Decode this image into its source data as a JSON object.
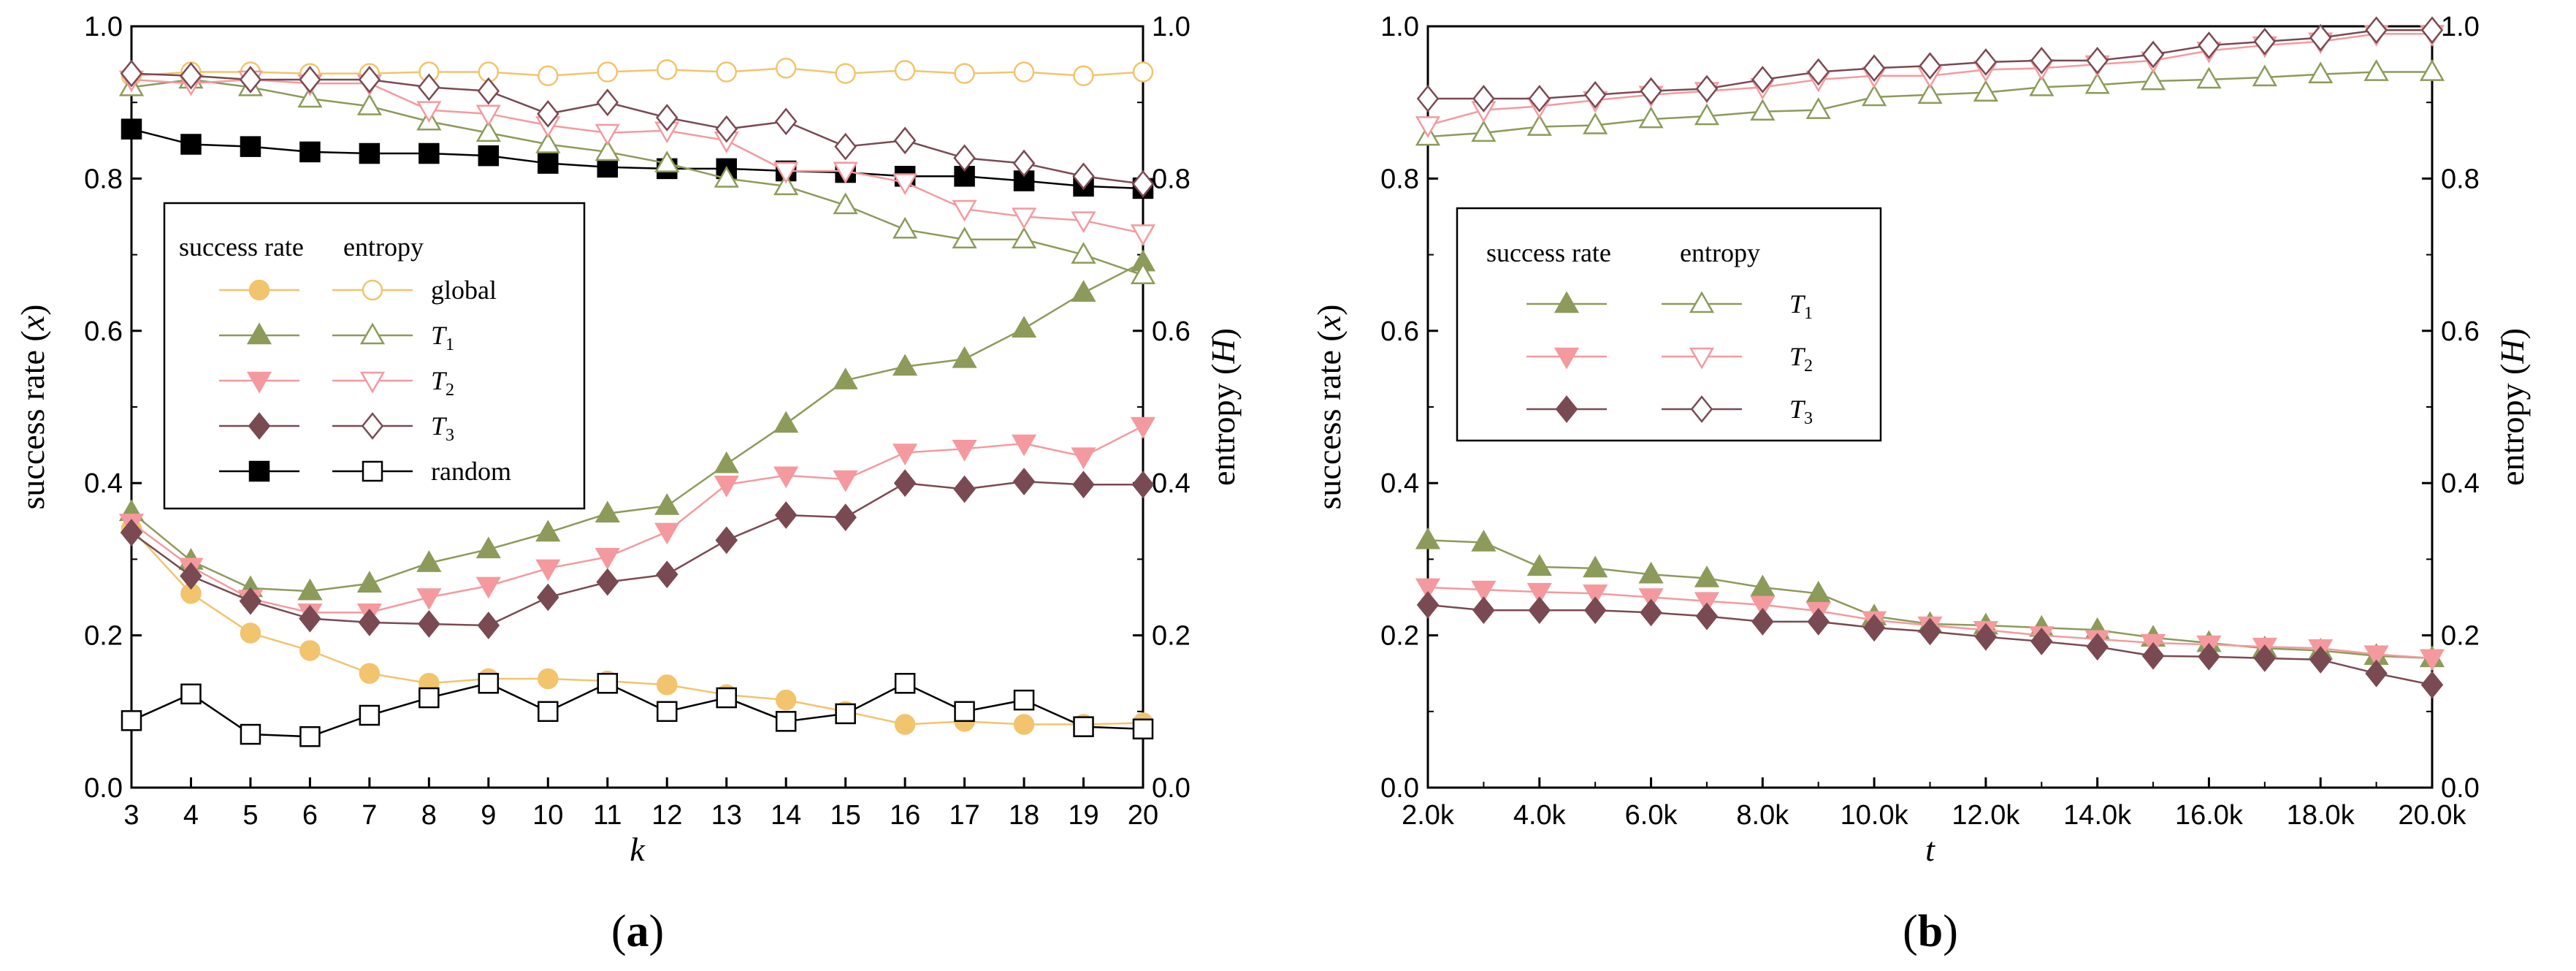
{
  "colors": {
    "global": "#F2C46D",
    "T1": "#8C9B5A",
    "T2": "#F49A9E",
    "T3": "#7A4A52",
    "random": "#000000"
  },
  "chart_data": [
    {
      "type": "line",
      "panel_label": "(a)",
      "xlabel": "k",
      "ylabel_left": "success rate (x)",
      "ylabel_right": "entropy (H)",
      "x": [
        3,
        4,
        5,
        6,
        7,
        8,
        9,
        10,
        11,
        12,
        13,
        14,
        15,
        16,
        17,
        18,
        19,
        20
      ],
      "x_ticks": [
        "3",
        "4",
        "5",
        "6",
        "7",
        "8",
        "9",
        "10",
        "11",
        "12",
        "13",
        "14",
        "15",
        "16",
        "17",
        "18",
        "19",
        "20"
      ],
      "xlim": [
        3,
        20
      ],
      "ylim": [
        0,
        1
      ],
      "y_ticks": [
        "0.0",
        "0.2",
        "0.4",
        "0.6",
        "0.8",
        "1.0"
      ],
      "legend": {
        "position": "left-middle",
        "header_success": "success rate",
        "header_entropy": "entropy",
        "rows": [
          {
            "key": "global",
            "label": "global"
          },
          {
            "key": "T1",
            "label": "T",
            "sub": "1"
          },
          {
            "key": "T2",
            "label": "T",
            "sub": "2"
          },
          {
            "key": "T3",
            "label": "T",
            "sub": "3"
          },
          {
            "key": "random",
            "label": "random"
          }
        ]
      },
      "series": [
        {
          "key": "global",
          "kind": "success",
          "marker": "circle",
          "filled": true,
          "values": [
            0.34,
            0.255,
            0.203,
            0.18,
            0.15,
            0.137,
            0.143,
            0.143,
            0.14,
            0.135,
            0.122,
            0.115,
            0.1,
            0.083,
            0.087,
            0.083,
            0.083,
            0.085
          ]
        },
        {
          "key": "T1",
          "kind": "success",
          "marker": "triangle-up",
          "filled": true,
          "values": [
            0.362,
            0.298,
            0.262,
            0.258,
            0.268,
            0.295,
            0.313,
            0.335,
            0.36,
            0.37,
            0.425,
            0.478,
            0.535,
            0.553,
            0.563,
            0.603,
            0.65,
            0.69
          ]
        },
        {
          "key": "T2",
          "kind": "success",
          "marker": "triangle-down",
          "filled": true,
          "values": [
            0.348,
            0.29,
            0.248,
            0.23,
            0.23,
            0.25,
            0.265,
            0.288,
            0.303,
            0.336,
            0.398,
            0.41,
            0.405,
            0.44,
            0.445,
            0.452,
            0.435,
            0.475
          ]
        },
        {
          "key": "T3",
          "kind": "success",
          "marker": "diamond",
          "filled": true,
          "values": [
            0.335,
            0.278,
            0.245,
            0.222,
            0.217,
            0.215,
            0.213,
            0.25,
            0.27,
            0.28,
            0.325,
            0.358,
            0.355,
            0.4,
            0.392,
            0.402,
            0.398,
            0.398
          ]
        },
        {
          "key": "random",
          "kind": "success",
          "marker": "square",
          "filled": true,
          "values": [
            0.865,
            0.845,
            0.842,
            0.835,
            0.833,
            0.833,
            0.83,
            0.82,
            0.815,
            0.813,
            0.813,
            0.81,
            0.808,
            0.803,
            0.803,
            0.797,
            0.79,
            0.787
          ]
        },
        {
          "key": "global",
          "kind": "entropy",
          "marker": "circle",
          "filled": false,
          "values": [
            0.935,
            0.94,
            0.94,
            0.938,
            0.938,
            0.94,
            0.94,
            0.935,
            0.94,
            0.943,
            0.94,
            0.945,
            0.938,
            0.942,
            0.938,
            0.94,
            0.935,
            0.94
          ]
        },
        {
          "key": "T1",
          "kind": "entropy",
          "marker": "triangle-up",
          "filled": false,
          "values": [
            0.92,
            0.93,
            0.92,
            0.905,
            0.895,
            0.875,
            0.86,
            0.845,
            0.835,
            0.82,
            0.8,
            0.79,
            0.765,
            0.733,
            0.72,
            0.72,
            0.7,
            0.673
          ]
        },
        {
          "key": "T2",
          "kind": "entropy",
          "marker": "triangle-down",
          "filled": false,
          "values": [
            0.93,
            0.925,
            0.93,
            0.925,
            0.925,
            0.89,
            0.885,
            0.87,
            0.86,
            0.863,
            0.85,
            0.81,
            0.81,
            0.795,
            0.76,
            0.75,
            0.745,
            0.728
          ]
        },
        {
          "key": "T3",
          "kind": "entropy",
          "marker": "diamond",
          "filled": false,
          "values": [
            0.938,
            0.935,
            0.93,
            0.93,
            0.93,
            0.92,
            0.915,
            0.885,
            0.9,
            0.88,
            0.865,
            0.875,
            0.842,
            0.85,
            0.827,
            0.82,
            0.803,
            0.793
          ]
        },
        {
          "key": "random",
          "kind": "entropy",
          "marker": "square",
          "filled": false,
          "values": [
            0.088,
            0.123,
            0.07,
            0.067,
            0.095,
            0.118,
            0.137,
            0.1,
            0.137,
            0.1,
            0.118,
            0.087,
            0.097,
            0.137,
            0.1,
            0.115,
            0.08,
            0.077
          ]
        }
      ]
    },
    {
      "type": "line",
      "panel_label": "(b)",
      "xlabel": "t",
      "ylabel_left": "success rate (x)",
      "ylabel_right": "entropy (H)",
      "x": [
        2000,
        3000,
        4000,
        5000,
        6000,
        7000,
        8000,
        9000,
        10000,
        11000,
        12000,
        13000,
        14000,
        15000,
        16000,
        17000,
        18000,
        19000,
        20000
      ],
      "x_tick_values": [
        2000,
        4000,
        6000,
        8000,
        10000,
        12000,
        14000,
        16000,
        18000,
        20000
      ],
      "x_ticks": [
        "2.0k",
        "4.0k",
        "6.0k",
        "8.0k",
        "10.0k",
        "12.0k",
        "14.0k",
        "16.0k",
        "18.0k",
        "20.0k"
      ],
      "xlim": [
        2000,
        20000
      ],
      "ylim": [
        0,
        1
      ],
      "y_ticks": [
        "0.0",
        "0.2",
        "0.4",
        "0.6",
        "0.8",
        "1.0"
      ],
      "legend": {
        "position": "left-middle",
        "header_success": "success rate",
        "header_entropy": "entropy",
        "rows": [
          {
            "key": "T1",
            "label": "T",
            "sub": "1"
          },
          {
            "key": "T2",
            "label": "T",
            "sub": "2"
          },
          {
            "key": "T3",
            "label": "T",
            "sub": "3"
          }
        ]
      },
      "series": [
        {
          "key": "T1",
          "kind": "success",
          "marker": "triangle-up",
          "filled": true,
          "values": [
            0.325,
            0.322,
            0.29,
            0.288,
            0.28,
            0.275,
            0.263,
            0.255,
            0.225,
            0.215,
            0.213,
            0.21,
            0.207,
            0.197,
            0.19,
            0.183,
            0.18,
            0.173,
            0.17
          ]
        },
        {
          "key": "T2",
          "kind": "success",
          "marker": "triangle-down",
          "filled": true,
          "values": [
            0.263,
            0.26,
            0.257,
            0.255,
            0.25,
            0.245,
            0.24,
            0.232,
            0.22,
            0.213,
            0.207,
            0.2,
            0.195,
            0.19,
            0.188,
            0.185,
            0.183,
            0.175,
            0.17
          ]
        },
        {
          "key": "T3",
          "kind": "success",
          "marker": "diamond",
          "filled": true,
          "values": [
            0.24,
            0.233,
            0.233,
            0.233,
            0.23,
            0.225,
            0.218,
            0.218,
            0.21,
            0.205,
            0.198,
            0.192,
            0.185,
            0.173,
            0.172,
            0.17,
            0.168,
            0.15,
            0.135
          ]
        },
        {
          "key": "T1",
          "kind": "entropy",
          "marker": "triangle-up",
          "filled": false,
          "values": [
            0.855,
            0.86,
            0.868,
            0.87,
            0.878,
            0.882,
            0.888,
            0.89,
            0.907,
            0.91,
            0.913,
            0.92,
            0.923,
            0.928,
            0.93,
            0.933,
            0.937,
            0.94,
            0.94
          ]
        },
        {
          "key": "T2",
          "kind": "entropy",
          "marker": "triangle-down",
          "filled": false,
          "values": [
            0.87,
            0.89,
            0.895,
            0.903,
            0.91,
            0.915,
            0.92,
            0.93,
            0.935,
            0.935,
            0.943,
            0.945,
            0.95,
            0.955,
            0.968,
            0.975,
            0.98,
            0.99,
            0.99
          ]
        },
        {
          "key": "T3",
          "kind": "entropy",
          "marker": "diamond",
          "filled": false,
          "values": [
            0.905,
            0.905,
            0.905,
            0.91,
            0.915,
            0.918,
            0.93,
            0.94,
            0.945,
            0.948,
            0.953,
            0.955,
            0.955,
            0.963,
            0.975,
            0.98,
            0.985,
            0.995,
            0.995
          ]
        }
      ]
    }
  ]
}
